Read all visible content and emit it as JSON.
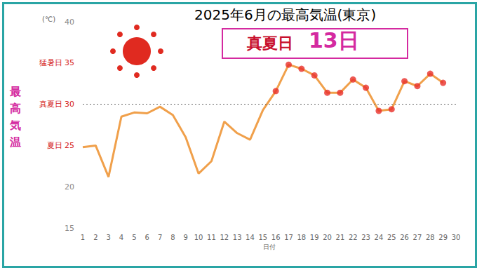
{
  "chart_data": {
    "type": "line",
    "title": "2025年6月の最高気温(東京)",
    "annotation": {
      "label": "真夏日",
      "value": "13日"
    },
    "y_label": "最高気温",
    "y_unit": "(℃)",
    "x_label": "日付",
    "categories": [
      "1",
      "2",
      "3",
      "4",
      "5",
      "6",
      "7",
      "8",
      "9",
      "10",
      "11",
      "12",
      "13",
      "14",
      "15",
      "16",
      "17",
      "18",
      "19",
      "20",
      "21",
      "22",
      "23",
      "24",
      "25",
      "26",
      "27",
      "28",
      "29",
      "30"
    ],
    "series": [
      {
        "type": "line",
        "color": "#f0a04b",
        "marker": "none",
        "values": [
          24.8,
          25.0,
          21.2,
          28.5,
          29.0,
          28.9,
          29.7,
          28.7,
          26.0,
          21.6,
          23.1,
          27.9,
          26.5,
          25.7,
          29.3,
          31.6,
          34.8,
          34.3,
          33.5,
          31.4,
          31.4,
          33.0,
          32.0,
          29.2,
          29.4,
          32.8,
          32.2,
          33.7,
          32.6,
          null
        ]
      },
      {
        "type": "scatter",
        "color": "#e8302a",
        "marker": "circle",
        "values": [
          null,
          null,
          null,
          null,
          null,
          null,
          null,
          null,
          null,
          null,
          null,
          null,
          null,
          null,
          null,
          31.6,
          34.8,
          34.3,
          33.5,
          31.4,
          31.4,
          33.0,
          32.0,
          29.2,
          29.4,
          32.8,
          32.2,
          33.7,
          32.6,
          null
        ]
      }
    ],
    "hline": 30,
    "ylim": [
      15,
      40
    ],
    "yticks": [
      15,
      20,
      {
        "value": 25,
        "label": "夏日 25"
      },
      {
        "value": 30,
        "label": "真夏日 30"
      },
      {
        "value": 35,
        "label": "猛暑日 35"
      },
      40
    ],
    "grid": false
  }
}
